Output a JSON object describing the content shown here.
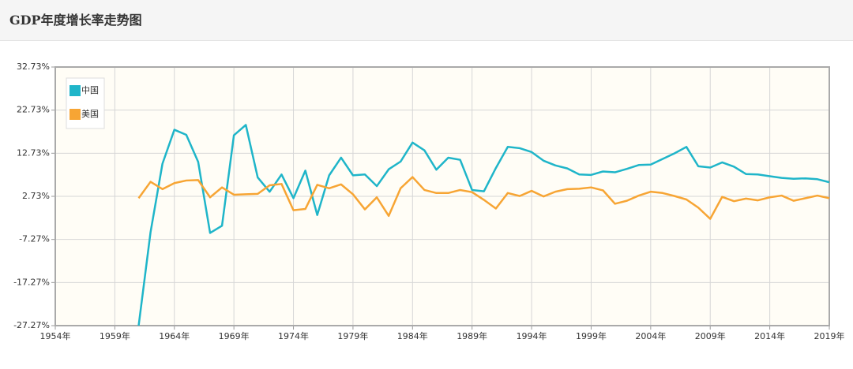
{
  "header": {
    "title": "GDP年度增长率走势图"
  },
  "chart_data": {
    "type": "line",
    "x": [
      1961,
      1962,
      1963,
      1964,
      1965,
      1966,
      1967,
      1968,
      1969,
      1970,
      1971,
      1972,
      1973,
      1974,
      1975,
      1976,
      1977,
      1978,
      1979,
      1980,
      1981,
      1982,
      1983,
      1984,
      1985,
      1986,
      1987,
      1988,
      1989,
      1990,
      1991,
      1992,
      1993,
      1994,
      1995,
      1996,
      1997,
      1998,
      1999,
      2000,
      2001,
      2002,
      2003,
      2004,
      2005,
      2006,
      2007,
      2008,
      2009,
      2010,
      2011,
      2012,
      2013,
      2014,
      2015,
      2016,
      2017,
      2018,
      2019
    ],
    "series": [
      {
        "name": "中国",
        "color": "#1fb5c9",
        "values": [
          -27.27,
          -5.58,
          10.3,
          18.18,
          17.0,
          10.7,
          -5.77,
          -4.1,
          16.9,
          19.3,
          7.1,
          3.8,
          7.8,
          2.3,
          8.7,
          -1.6,
          7.6,
          11.7,
          7.6,
          7.8,
          5.1,
          9.0,
          10.8,
          15.2,
          13.4,
          8.9,
          11.7,
          11.2,
          4.2,
          3.9,
          9.3,
          14.2,
          13.9,
          13.0,
          11.0,
          9.9,
          9.2,
          7.8,
          7.7,
          8.5,
          8.3,
          9.1,
          10.0,
          10.1,
          11.4,
          12.7,
          14.2,
          9.7,
          9.4,
          10.6,
          9.6,
          7.9,
          7.8,
          7.4,
          7.0,
          6.8,
          6.9,
          6.7,
          6.0
        ]
      },
      {
        "name": "美国",
        "color": "#f7a534",
        "values": [
          2.3,
          6.1,
          4.4,
          5.8,
          6.4,
          6.5,
          2.5,
          4.8,
          3.1,
          3.2,
          3.3,
          5.3,
          5.6,
          -0.5,
          -0.2,
          5.4,
          4.6,
          5.5,
          3.2,
          -0.3,
          2.5,
          -1.8,
          4.6,
          7.2,
          4.2,
          3.5,
          3.5,
          4.2,
          3.7,
          1.9,
          -0.1,
          3.5,
          2.8,
          4.0,
          2.7,
          3.8,
          4.4,
          4.5,
          4.8,
          4.1,
          1.0,
          1.7,
          2.9,
          3.8,
          3.5,
          2.8,
          2.0,
          0.1,
          -2.5,
          2.6,
          1.6,
          2.2,
          1.8,
          2.5,
          2.9,
          1.7,
          2.3,
          2.9,
          2.3
        ]
      }
    ],
    "xlim": [
      1954,
      2019
    ],
    "xticks": [
      {
        "value": 1954,
        "label": "1954年"
      },
      {
        "value": 1959,
        "label": "1959年"
      },
      {
        "value": 1964,
        "label": "1964年"
      },
      {
        "value": 1969,
        "label": "1969年"
      },
      {
        "value": 1974,
        "label": "1974年"
      },
      {
        "value": 1979,
        "label": "1979年"
      },
      {
        "value": 1984,
        "label": "1984年"
      },
      {
        "value": 1989,
        "label": "1989年"
      },
      {
        "value": 1994,
        "label": "1994年"
      },
      {
        "value": 1999,
        "label": "1999年"
      },
      {
        "value": 2004,
        "label": "2004年"
      },
      {
        "value": 2009,
        "label": "2009年"
      },
      {
        "value": 2014,
        "label": "2014年"
      },
      {
        "value": 2019,
        "label": "2019年"
      }
    ],
    "ylim": [
      -27.27,
      32.73
    ],
    "yticks": [
      {
        "value": -27.27,
        "label": "-27.27%"
      },
      {
        "value": -17.27,
        "label": "-17.27%"
      },
      {
        "value": -7.27,
        "label": "-7.27%"
      },
      {
        "value": 2.73,
        "label": "2.73%"
      },
      {
        "value": 12.73,
        "label": "12.73%"
      },
      {
        "value": 22.73,
        "label": "22.73%"
      },
      {
        "value": 32.73,
        "label": "32.73%"
      }
    ],
    "grid": true,
    "legend": "top-left"
  }
}
